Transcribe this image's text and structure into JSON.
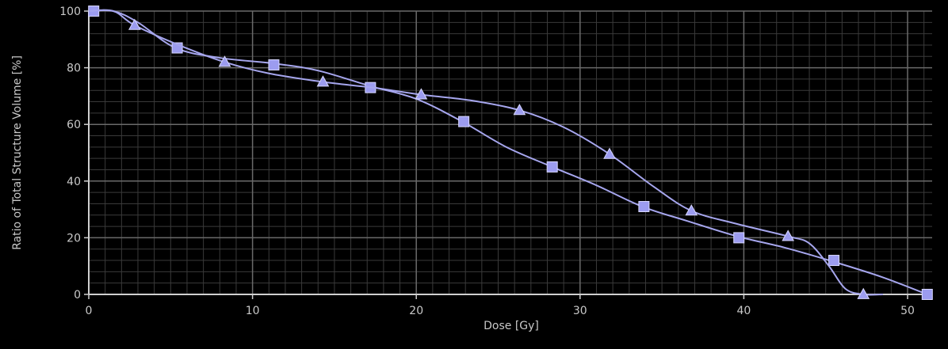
{
  "chart_data": {
    "type": "line",
    "title": "",
    "xlabel": "Dose [Gy]",
    "ylabel": "Ratio of Total Structure Volume [%]",
    "xlim": [
      0,
      51.5
    ],
    "ylim": [
      0,
      100
    ],
    "x_ticks": [
      0,
      10,
      20,
      30,
      40,
      50
    ],
    "y_ticks": [
      0,
      20,
      40,
      60,
      80,
      100
    ],
    "grid": true,
    "legend": "none",
    "colors": {
      "background": "#000000",
      "plot_background": "#000000",
      "grid_minor": "#3a3a3a",
      "grid_major": "#6a6a6a",
      "axis": "#cfcfcf",
      "text": "#c8c8c8",
      "line": "#a6a6ee",
      "marker": "#9c9cf0",
      "marker_edge": "#d8d8ff"
    },
    "series": [
      {
        "marker": "square",
        "curve": [
          [
            0,
            100
          ],
          [
            1.5,
            100
          ],
          [
            3,
            96
          ],
          [
            5.3,
            87
          ],
          [
            8,
            83.5
          ],
          [
            11.3,
            81.5
          ],
          [
            14,
            79
          ],
          [
            17.2,
            73.5
          ],
          [
            20,
            69
          ],
          [
            22.8,
            61
          ],
          [
            25.5,
            52
          ],
          [
            28.3,
            45
          ],
          [
            31,
            38.5
          ],
          [
            33.8,
            31
          ],
          [
            36.5,
            26
          ],
          [
            39.6,
            20.5
          ],
          [
            42.5,
            16.5
          ],
          [
            45.5,
            11.5
          ],
          [
            48.5,
            6
          ],
          [
            51.2,
            0
          ]
        ],
        "markers": [
          [
            0.3,
            100
          ],
          [
            5.4,
            87
          ],
          [
            11.3,
            81
          ],
          [
            17.2,
            73
          ],
          [
            22.9,
            61
          ],
          [
            28.3,
            45
          ],
          [
            33.9,
            31
          ],
          [
            39.7,
            20
          ],
          [
            45.5,
            12
          ],
          [
            51.2,
            0
          ]
        ]
      },
      {
        "marker": "triangle",
        "curve": [
          [
            0,
            100
          ],
          [
            1.5,
            100
          ],
          [
            2.8,
            95
          ],
          [
            5.5,
            88
          ],
          [
            8.3,
            82
          ],
          [
            11,
            78
          ],
          [
            14.3,
            75
          ],
          [
            17.3,
            73
          ],
          [
            20.3,
            70.5
          ],
          [
            23.3,
            68.5
          ],
          [
            26.3,
            65
          ],
          [
            29,
            59
          ],
          [
            31.8,
            49.5
          ],
          [
            34.5,
            38
          ],
          [
            36.8,
            29.5
          ],
          [
            39.5,
            25
          ],
          [
            42.7,
            20.5
          ],
          [
            44,
            18
          ],
          [
            45.2,
            10
          ],
          [
            46.2,
            2
          ],
          [
            47.3,
            0
          ],
          [
            48.5,
            0
          ]
        ],
        "markers": [
          [
            2.8,
            95
          ],
          [
            8.3,
            82
          ],
          [
            14.3,
            75
          ],
          [
            20.3,
            70.5
          ],
          [
            26.3,
            65
          ],
          [
            31.8,
            49.5
          ],
          [
            36.8,
            29.5
          ],
          [
            42.7,
            20.5
          ],
          [
            47.3,
            0
          ]
        ]
      }
    ]
  }
}
